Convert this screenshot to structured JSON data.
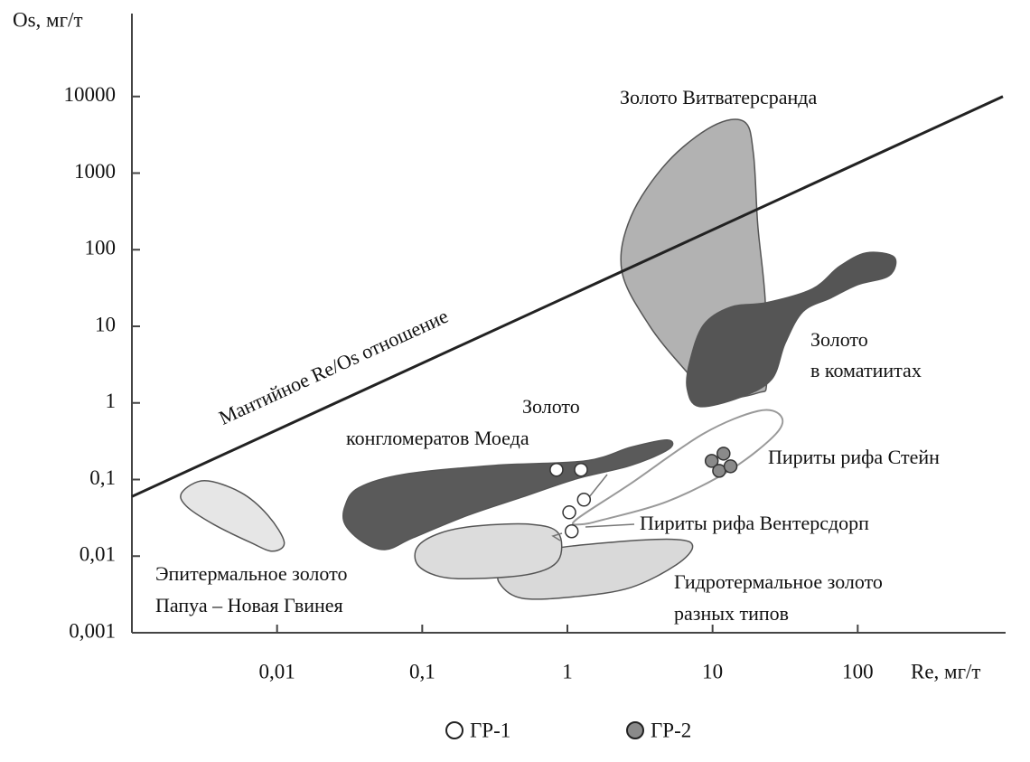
{
  "chart_data": {
    "type": "scatter",
    "x_label": "Re, мг/т",
    "y_label": "Os, мг/т",
    "xscale": "log",
    "yscale": "log",
    "grid": false,
    "xlim": [
      0.001,
      1000
    ],
    "ylim": [
      0.001,
      100000
    ],
    "xticks": [
      {
        "value": 0.01,
        "label": "0,01"
      },
      {
        "value": 0.1,
        "label": "0,1"
      },
      1,
      10,
      100
    ],
    "yticks": [
      {
        "value": 0.001,
        "label": "0,001"
      },
      {
        "value": 0.01,
        "label": "0,01"
      },
      {
        "value": 0.1,
        "label": "0,1"
      },
      1,
      10,
      100,
      1000,
      10000
    ],
    "reference_line": {
      "label": "Мантийное Re/Os отношение",
      "x": [
        0.001,
        1000
      ],
      "y": [
        0.06,
        10000
      ],
      "color": "#222222"
    },
    "regions": [
      {
        "fill": "#e6e6e6",
        "x": [
          0.00221,
          0.00316,
          0.00562,
          0.00866,
          0.0112,
          0.0093,
          0.0065,
          0.00365,
          0.00237
        ],
        "y": [
          0.0678,
          0.0966,
          0.0678,
          0.034,
          0.0152,
          0.0116,
          0.0152,
          0.026,
          0.045
        ]
      },
      {
        "fill": "#d9d9d9",
        "x": [
          0.34,
          0.365,
          0.649,
          2.05,
          5.62,
          7.29,
          5.62,
          2.74,
          1.15,
          0.487
        ],
        "y": [
          0.00447,
          0.0067,
          0.0116,
          0.0152,
          0.0165,
          0.0133,
          0.0077,
          0.0039,
          0.00297,
          0.00282
        ]
      },
      {
        "fill": "#dcdcdc",
        "x": [
          0.093,
          0.133,
          0.237,
          0.562,
          0.866,
          0.866,
          0.562,
          0.237,
          0.133,
          0.093
        ],
        "y": [
          0.0133,
          0.02,
          0.0248,
          0.026,
          0.02,
          0.00883,
          0.00587,
          0.0051,
          0.0054,
          0.0077
        ]
      },
      {
        "fill": "#5a5a5a",
        "x": [
          0.0294,
          0.0365,
          0.075,
          0.316,
          1.33,
          2.74,
          4.87,
          5.0,
          2.74,
          1.15,
          0.487,
          0.205,
          0.0866,
          0.0562,
          0.0392,
          0.0294
        ],
        "y": [
          0.045,
          0.078,
          0.117,
          0.153,
          0.175,
          0.264,
          0.328,
          0.25,
          0.153,
          0.102,
          0.059,
          0.034,
          0.0174,
          0.0122,
          0.0152,
          0.026
        ]
      },
      {
        "fill": "none",
        "x": [
          1.15,
          2.74,
          8.66,
          20.5,
          29.4,
          27.4,
          13.3,
          4.87,
          1.78,
          1.24
        ],
        "y": [
          0.03,
          0.089,
          0.397,
          0.783,
          0.684,
          0.397,
          0.134,
          0.0516,
          0.03,
          0.026
        ]
      },
      {
        "fill": "#b2b2b2",
        "x": [
          2.37,
          2.74,
          4.87,
          10,
          16.5,
          19.1,
          20.5,
          23,
          23.7,
          20.5,
          10,
          6.5,
          3.65
        ],
        "y": [
          53,
          270,
          1380,
          4100,
          4700,
          1820,
          206,
          23.4,
          2.03,
          1.35,
          1.18,
          2.66,
          10.4
        ]
      },
      {
        "fill": "#555555",
        "x": [
          6.98,
          8.66,
          13.3,
          23.7,
          48.7,
          75,
          115,
          178,
          165,
          100,
          65,
          42,
          31.6,
          25.5,
          15.4,
          8.06,
          6.68
        ],
        "y": [
          3.49,
          10.4,
          17.8,
          20.4,
          30.7,
          60.6,
          91,
          80,
          46,
          35,
          23.4,
          15.6,
          6.0,
          2.03,
          1.18,
          0.9,
          1.55
        ]
      }
    ],
    "series": [
      {
        "name": "ГР-1",
        "color": "#ffffff",
        "x": [
          0.841,
          1.24,
          1.3,
          1.03,
          1.07
        ],
        "y": [
          0.134,
          0.134,
          0.0546,
          0.0373,
          0.0211
        ]
      },
      {
        "name": "ГР-2",
        "color": "#8a8a8a",
        "x": [
          9.86,
          11.9,
          11.1,
          13.3
        ],
        "y": [
          0.175,
          0.218,
          0.13,
          0.149
        ]
      }
    ],
    "annotations": [
      "Золото Витватерсранда",
      "Золото",
      "в коматиитах",
      "Золото",
      "конгломератов Моеда",
      "Пириты рифа Стейн",
      "Пириты рифа Вентерсдорп",
      "Эпитермальное золото",
      "Папуа – Новая Гвинея",
      "Гидротермальное золото",
      "разных типов"
    ]
  }
}
